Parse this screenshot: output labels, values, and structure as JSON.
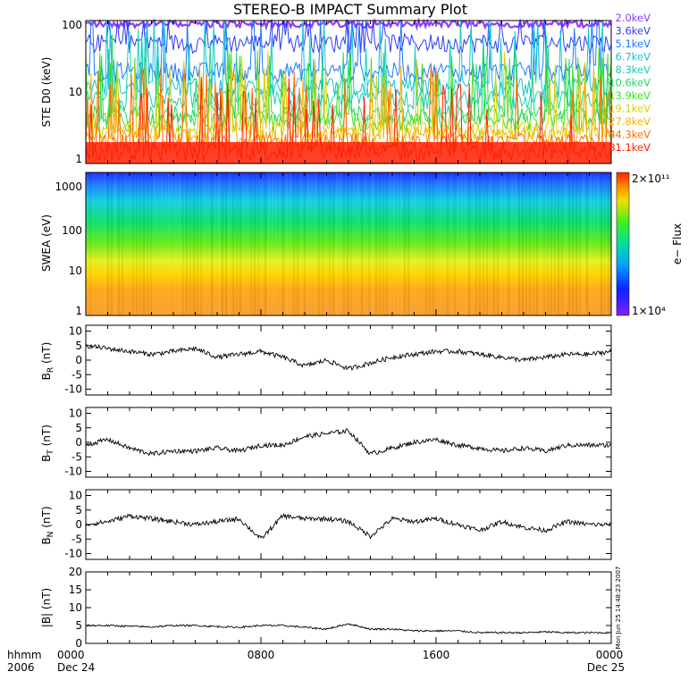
{
  "title": "STEREO-B IMPACT Summary Plot",
  "timestamp_note": "Mon Jun 25 14:48:23 2007",
  "time_axis": {
    "corner_top": "hhmm",
    "corner_bottom": "2006",
    "ticks": [
      {
        "hhmm": "0000",
        "date": "Dec 24"
      },
      {
        "hhmm": "0800",
        "date": ""
      },
      {
        "hhmm": "1600",
        "date": ""
      },
      {
        "hhmm": "0000",
        "date": "Dec 25"
      }
    ],
    "range_hours": [
      0,
      24
    ]
  },
  "colors": {
    "ste_channels": [
      "#8b3dff",
      "#2b3bff",
      "#1e78ff",
      "#17c3d6",
      "#17d0b8",
      "#22d86b",
      "#3ce023",
      "#d8d200",
      "#ffad00",
      "#ff6a00",
      "#ff1e00"
    ],
    "spectrogram_low": "#8020ff",
    "spectrogram_high": "#ff3000"
  },
  "panels": {
    "ste": {
      "ylabel": "STE D0 (keV)",
      "yticks": [
        "1",
        "10",
        "100"
      ],
      "channels": [
        "2.0keV",
        "3.6keV",
        "5.1keV",
        "6.7keV",
        "8.3keV",
        "10.6keV",
        "13.9keV",
        "19.1keV",
        "27.8keV",
        "44.3keV",
        "81.1keV"
      ]
    },
    "swea": {
      "ylabel": "SWEA (eV)",
      "yticks": [
        "1",
        "10",
        "100",
        "1000"
      ],
      "colorbar_label": "e− Flux",
      "colorbar_max": "2×10¹¹",
      "colorbar_min": "1×10⁴"
    },
    "br": {
      "ylabel": "B",
      "ysub": "R",
      "yunit": " (nT)",
      "yticks": [
        "-10",
        "-5",
        "0",
        "5",
        "10"
      ]
    },
    "bt": {
      "ylabel": "B",
      "ysub": "T",
      "yunit": " (nT)",
      "yticks": [
        "-10",
        "-5",
        "0",
        "5",
        "10"
      ]
    },
    "bn": {
      "ylabel": "B",
      "ysub": "N",
      "yunit": " (nT)",
      "yticks": [
        "-10",
        "-5",
        "0",
        "5",
        "10"
      ]
    },
    "bmag": {
      "ylabel": "|B| (nT)",
      "yticks": [
        "0",
        "5",
        "10",
        "15",
        "20"
      ]
    }
  },
  "chart_data": [
    {
      "type": "line",
      "panel": "STE D0",
      "title": "STEREO-B IMPACT Summary Plot",
      "ylabel": "STE D0 (keV)",
      "yscale": "log",
      "ylim": [
        1,
        100
      ],
      "xlim_hours": [
        0,
        24
      ],
      "series_names": [
        "2.0keV",
        "3.6keV",
        "5.1keV",
        "6.7keV",
        "8.3keV",
        "10.6keV",
        "13.9keV",
        "19.1keV",
        "27.8keV",
        "44.3keV",
        "81.1keV"
      ],
      "typical_levels": [
        95,
        50,
        20,
        12,
        8,
        5,
        4,
        3,
        2.5,
        2,
        1.5
      ]
    },
    {
      "type": "heatmap",
      "panel": "SWEA",
      "ylabel": "SWEA (eV)",
      "yscale": "log",
      "ylim": [
        1,
        2000
      ],
      "colorbar": {
        "label": "e− Flux",
        "min": 10000,
        "max": 200000000000,
        "scale": "log"
      },
      "profile_energy_eV": [
        1.5,
        5,
        10,
        30,
        100,
        300,
        1000,
        1800
      ],
      "profile_level_0to1": [
        0.8,
        0.82,
        0.68,
        0.55,
        0.42,
        0.32,
        0.18,
        0.12
      ]
    },
    {
      "type": "line",
      "panel": "BR",
      "ylabel": "BR (nT)",
      "ylim": [
        -12,
        12
      ],
      "x_hours": [
        0,
        1,
        2,
        3,
        4,
        5,
        6,
        7,
        8,
        9,
        10,
        11,
        12,
        13,
        14,
        15,
        16,
        17,
        18,
        19,
        20,
        21,
        22,
        23,
        24
      ],
      "values": [
        5,
        4,
        3,
        2,
        3,
        4,
        1,
        2,
        3,
        1,
        -2,
        0,
        -3,
        -1,
        1,
        2,
        3,
        3,
        2,
        1,
        0,
        1,
        2,
        2,
        3
      ]
    },
    {
      "type": "line",
      "panel": "BT",
      "ylabel": "BT (nT)",
      "ylim": [
        -12,
        12
      ],
      "x_hours": [
        0,
        1,
        2,
        3,
        4,
        5,
        6,
        7,
        8,
        9,
        10,
        11,
        12,
        13,
        14,
        15,
        16,
        17,
        18,
        19,
        20,
        21,
        22,
        23,
        24
      ],
      "values": [
        -1,
        1,
        -2,
        -4,
        -3,
        -3,
        -2,
        -3,
        -1,
        -1,
        2,
        3,
        4,
        -4,
        -2,
        0,
        1,
        -1,
        -2,
        -3,
        -2,
        -3,
        -1,
        -1,
        -1
      ]
    },
    {
      "type": "line",
      "panel": "BN",
      "ylabel": "BN (nT)",
      "ylim": [
        -12,
        12
      ],
      "x_hours": [
        0,
        1,
        2,
        3,
        4,
        5,
        6,
        7,
        8,
        9,
        10,
        11,
        12,
        13,
        14,
        15,
        16,
        17,
        18,
        19,
        20,
        21,
        22,
        23,
        24
      ],
      "values": [
        0,
        1,
        3,
        2,
        1,
        0,
        1,
        2,
        -5,
        3,
        2,
        2,
        1,
        -4,
        2,
        1,
        2,
        0,
        -2,
        1,
        -1,
        -2,
        1,
        0,
        0
      ]
    },
    {
      "type": "line",
      "panel": "|B|",
      "ylabel": "|B| (nT)",
      "ylim": [
        0,
        20
      ],
      "x_hours": [
        0,
        1,
        2,
        3,
        4,
        5,
        6,
        7,
        8,
        9,
        10,
        11,
        12,
        13,
        14,
        15,
        16,
        17,
        18,
        19,
        20,
        21,
        22,
        23,
        24
      ],
      "values": [
        5,
        5,
        4.8,
        4.6,
        5,
        5,
        4.7,
        4.5,
        5,
        5,
        4.5,
        4,
        5.5,
        4,
        4,
        3.5,
        3.5,
        3.5,
        3,
        3,
        3,
        3.2,
        3,
        3,
        3
      ]
    }
  ]
}
